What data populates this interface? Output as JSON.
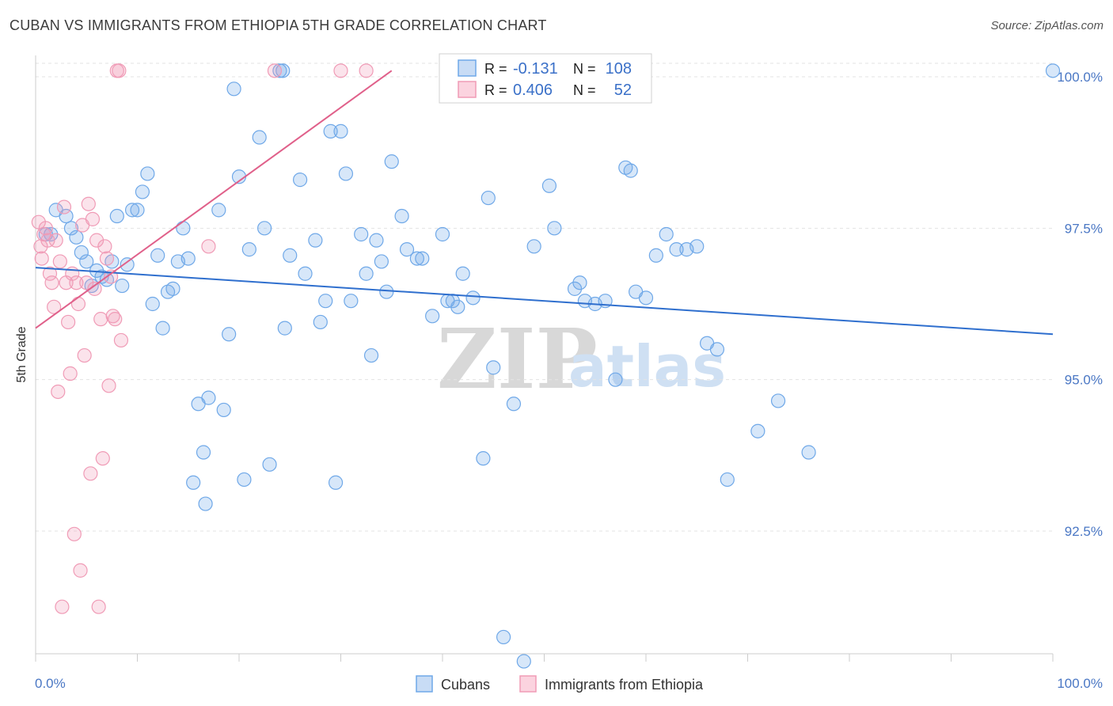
{
  "title": "CUBAN VS IMMIGRANTS FROM ETHIOPIA 5TH GRADE CORRELATION CHART",
  "source": "Source: ZipAtlas.com",
  "watermark": {
    "zip": "ZIP",
    "atlas": "atlas"
  },
  "legend": {
    "rows": [
      {
        "r_label": "R =",
        "r_value": "-0.131",
        "n_label": "N =",
        "n_value": "108",
        "color": "#6fa8e8"
      },
      {
        "r_label": "R =",
        "r_value": "0.406",
        "n_label": "N =",
        "n_value": "52",
        "color": "#f09bb6"
      }
    ]
  },
  "bottom_legend": [
    {
      "label": "Cubans",
      "color": "#6fa8e8"
    },
    {
      "label": "Immigrants from Ethiopia",
      "color": "#f09bb6"
    }
  ],
  "chart_data": {
    "type": "scatter",
    "ylabel": "5th Grade",
    "xlim": [
      0,
      100
    ],
    "ylim": [
      90.0,
      100.2
    ],
    "y_ticks": [
      {
        "value": 92.5,
        "label": "92.5%"
      },
      {
        "value": 95.0,
        "label": "95.0%"
      },
      {
        "value": 97.5,
        "label": "97.5%"
      },
      {
        "value": 100.0,
        "label": "100.0%"
      }
    ],
    "x_tick_labels": [
      {
        "value": 0,
        "label": "0.0%"
      },
      {
        "value": 100,
        "label": "100.0%"
      }
    ],
    "grid": true,
    "series": [
      {
        "name": "Cubans",
        "color": "#6fa8e8",
        "trend": {
          "x": [
            0,
            100
          ],
          "y": [
            96.85,
            95.75
          ],
          "color": "#2f6fce"
        },
        "points": [
          [
            1.0,
            97.4
          ],
          [
            1.5,
            97.4
          ],
          [
            2.0,
            97.8
          ],
          [
            3.0,
            97.7
          ],
          [
            3.5,
            97.5
          ],
          [
            4.0,
            97.35
          ],
          [
            4.5,
            97.1
          ],
          [
            5.0,
            96.95
          ],
          [
            5.5,
            96.55
          ],
          [
            6.0,
            96.8
          ],
          [
            6.5,
            96.7
          ],
          [
            7.0,
            96.65
          ],
          [
            7.5,
            96.95
          ],
          [
            8.0,
            97.7
          ],
          [
            8.5,
            96.55
          ],
          [
            9.0,
            96.9
          ],
          [
            9.5,
            97.8
          ],
          [
            10.0,
            97.8
          ],
          [
            10.5,
            98.1
          ],
          [
            11.0,
            98.4
          ],
          [
            11.5,
            96.25
          ],
          [
            12.0,
            97.05
          ],
          [
            12.5,
            95.85
          ],
          [
            13.0,
            96.45
          ],
          [
            13.5,
            96.5
          ],
          [
            14.0,
            96.95
          ],
          [
            14.5,
            97.5
          ],
          [
            15.0,
            97.0
          ],
          [
            15.5,
            93.3
          ],
          [
            16.0,
            94.6
          ],
          [
            16.5,
            93.8
          ],
          [
            16.7,
            92.95
          ],
          [
            17.0,
            94.7
          ],
          [
            18.0,
            97.8
          ],
          [
            18.5,
            94.5
          ],
          [
            19.0,
            95.75
          ],
          [
            19.5,
            99.8
          ],
          [
            20.0,
            98.35
          ],
          [
            20.5,
            93.35
          ],
          [
            21.0,
            97.15
          ],
          [
            22.0,
            99.0
          ],
          [
            22.5,
            97.5
          ],
          [
            23.0,
            93.6
          ],
          [
            24.0,
            100.1
          ],
          [
            24.3,
            100.1
          ],
          [
            24.5,
            95.85
          ],
          [
            25.0,
            97.05
          ],
          [
            26.0,
            98.3
          ],
          [
            26.5,
            96.75
          ],
          [
            27.5,
            97.3
          ],
          [
            28.0,
            95.95
          ],
          [
            28.5,
            96.3
          ],
          [
            29.0,
            99.1
          ],
          [
            29.5,
            93.3
          ],
          [
            30.0,
            99.1
          ],
          [
            30.5,
            98.4
          ],
          [
            31.0,
            96.3
          ],
          [
            32.0,
            97.4
          ],
          [
            32.5,
            96.75
          ],
          [
            33.0,
            95.4
          ],
          [
            33.5,
            97.3
          ],
          [
            34.0,
            96.95
          ],
          [
            34.5,
            96.45
          ],
          [
            35.0,
            98.6
          ],
          [
            36.0,
            97.7
          ],
          [
            36.5,
            97.15
          ],
          [
            37.5,
            97.0
          ],
          [
            38.0,
            97.0
          ],
          [
            39.0,
            96.05
          ],
          [
            40.0,
            97.4
          ],
          [
            40.5,
            96.3
          ],
          [
            41.0,
            96.3
          ],
          [
            41.5,
            96.2
          ],
          [
            42.0,
            96.75
          ],
          [
            43.0,
            96.35
          ],
          [
            44.0,
            93.7
          ],
          [
            44.5,
            98.0
          ],
          [
            45.0,
            95.2
          ],
          [
            46.0,
            90.75
          ],
          [
            47.0,
            94.6
          ],
          [
            48.0,
            90.35
          ],
          [
            49.0,
            97.2
          ],
          [
            50.5,
            98.2
          ],
          [
            51.0,
            97.5
          ],
          [
            53.0,
            96.5
          ],
          [
            53.5,
            96.6
          ],
          [
            54.0,
            96.3
          ],
          [
            55.0,
            96.25
          ],
          [
            56.0,
            96.3
          ],
          [
            57.0,
            95.0
          ],
          [
            58.0,
            98.5
          ],
          [
            58.5,
            98.45
          ],
          [
            59.0,
            96.45
          ],
          [
            60.0,
            96.35
          ],
          [
            61.0,
            97.05
          ],
          [
            62.0,
            97.4
          ],
          [
            63.0,
            97.15
          ],
          [
            64.0,
            97.15
          ],
          [
            65.0,
            97.2
          ],
          [
            66.0,
            95.6
          ],
          [
            67.0,
            95.5
          ],
          [
            68.0,
            93.35
          ],
          [
            71.0,
            94.15
          ],
          [
            73.0,
            94.65
          ],
          [
            76.0,
            93.8
          ],
          [
            100.0,
            100.1
          ]
        ]
      },
      {
        "name": "Immigrants from Ethiopia",
        "color": "#f09bb6",
        "trend": {
          "x": [
            0,
            35
          ],
          "y": [
            95.85,
            100.1
          ],
          "color": "#e0608a"
        },
        "points": [
          [
            0.3,
            97.6
          ],
          [
            0.5,
            97.2
          ],
          [
            0.6,
            97.0
          ],
          [
            0.8,
            97.4
          ],
          [
            1.0,
            97.5
          ],
          [
            1.2,
            97.3
          ],
          [
            1.4,
            96.75
          ],
          [
            1.6,
            96.6
          ],
          [
            1.8,
            96.2
          ],
          [
            2.0,
            97.3
          ],
          [
            2.2,
            94.8
          ],
          [
            2.4,
            96.95
          ],
          [
            2.6,
            91.25
          ],
          [
            2.8,
            97.85
          ],
          [
            3.0,
            96.6
          ],
          [
            3.2,
            95.95
          ],
          [
            3.4,
            95.1
          ],
          [
            3.6,
            96.75
          ],
          [
            3.8,
            92.45
          ],
          [
            4.0,
            96.6
          ],
          [
            4.2,
            96.25
          ],
          [
            4.4,
            91.85
          ],
          [
            4.6,
            97.55
          ],
          [
            4.8,
            95.4
          ],
          [
            5.0,
            96.6
          ],
          [
            5.2,
            97.9
          ],
          [
            5.4,
            93.45
          ],
          [
            5.6,
            97.65
          ],
          [
            5.8,
            96.5
          ],
          [
            6.0,
            97.3
          ],
          [
            6.2,
            91.25
          ],
          [
            6.4,
            96.0
          ],
          [
            6.6,
            93.7
          ],
          [
            6.8,
            97.2
          ],
          [
            7.0,
            97.0
          ],
          [
            7.2,
            94.9
          ],
          [
            7.4,
            96.7
          ],
          [
            7.6,
            96.05
          ],
          [
            7.8,
            96.0
          ],
          [
            8.0,
            100.1
          ],
          [
            8.2,
            100.1
          ],
          [
            8.4,
            95.65
          ],
          [
            17.0,
            97.2
          ],
          [
            23.5,
            100.1
          ],
          [
            30.0,
            100.1
          ],
          [
            32.5,
            100.1
          ]
        ]
      }
    ]
  }
}
